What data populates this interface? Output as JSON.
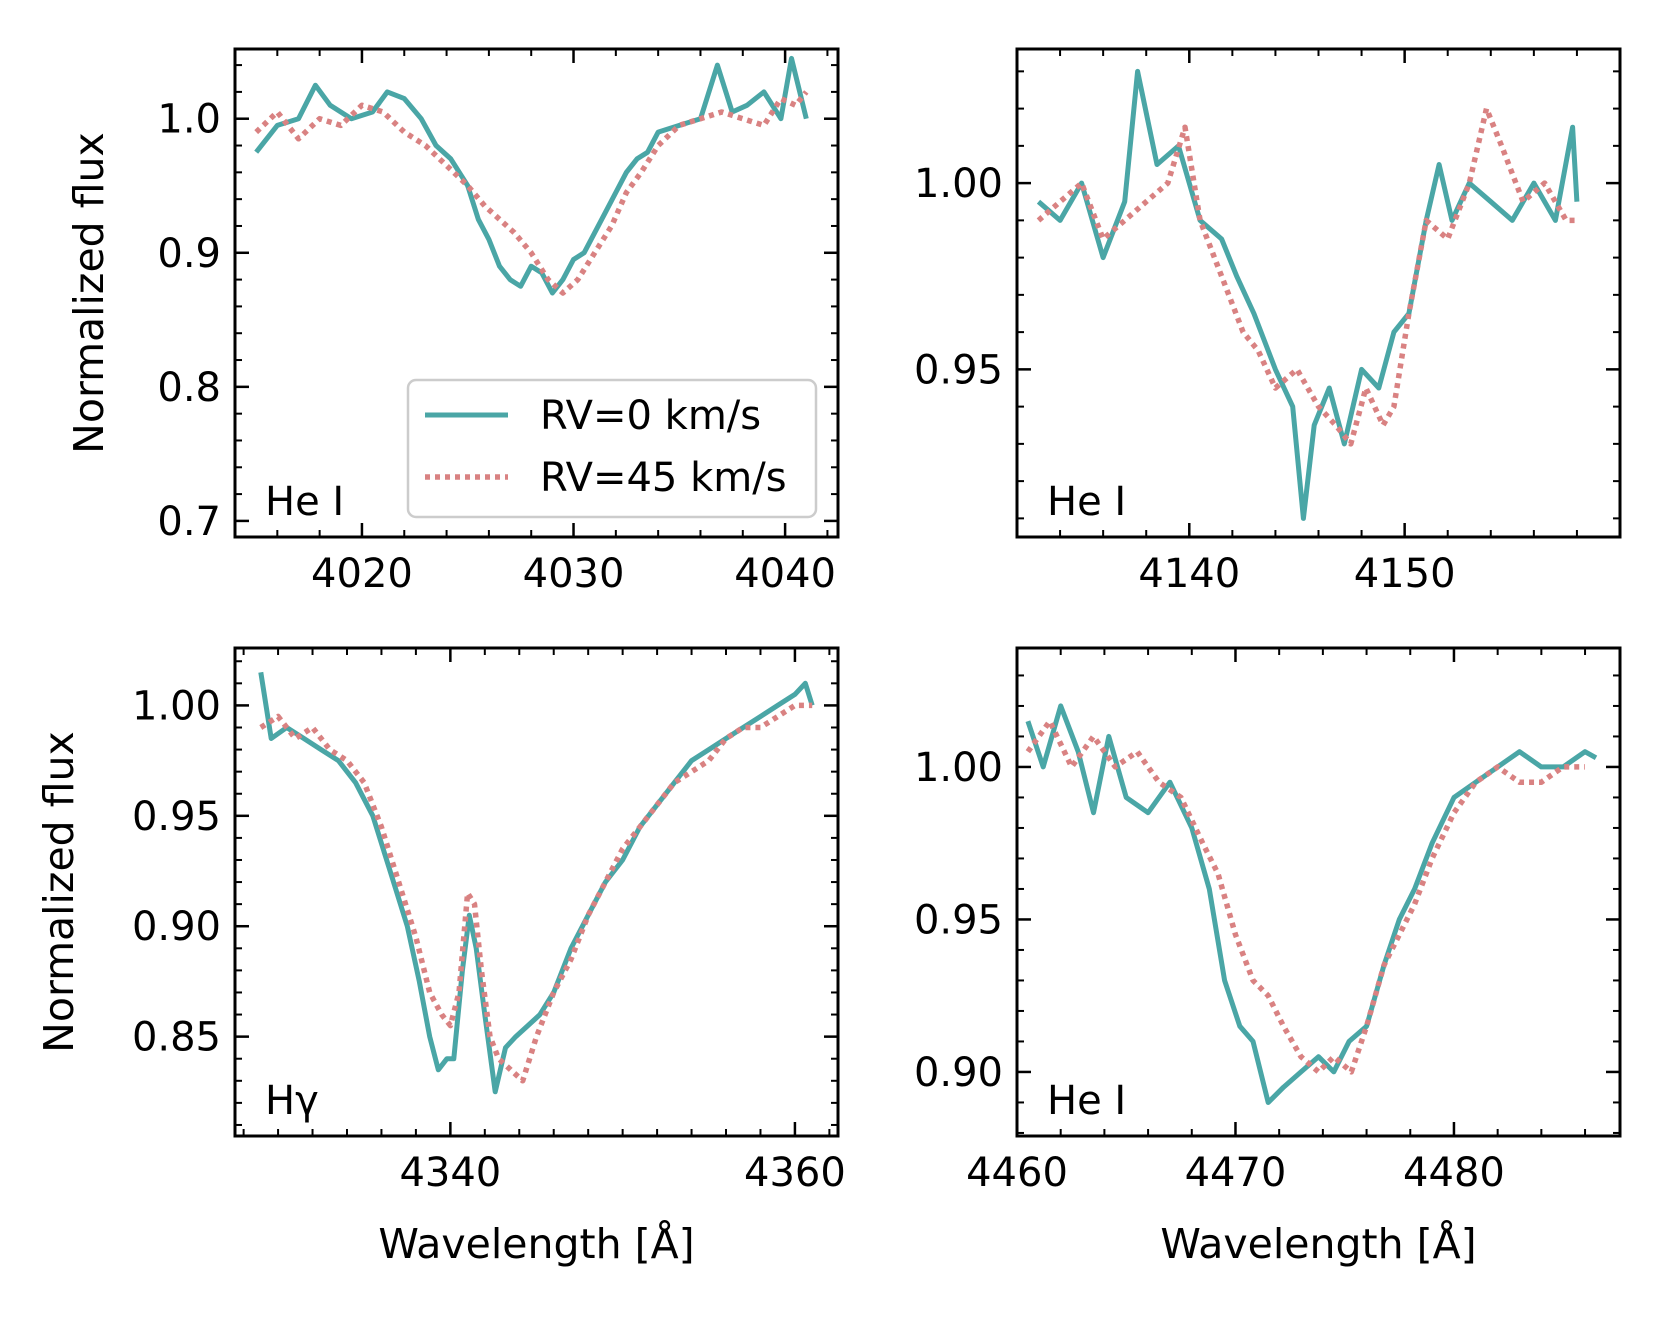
{
  "legend": {
    "entries": [
      {
        "label": "RV=0 km/s",
        "color": "#4aa6a6",
        "style": "solid"
      },
      {
        "label": "RV=45 km/s",
        "color": "#d98282",
        "style": "dotted"
      }
    ]
  },
  "colors": {
    "series_solid": "#4aa6a6",
    "series_dotted": "#d98282",
    "axes": "#000000"
  },
  "chart_data": [
    {
      "type": "line",
      "panel_label": "He I",
      "xlabel": "",
      "ylabel": "Normalized flux",
      "xlim": [
        4014,
        4042.5
      ],
      "ylim": [
        0.688,
        1.052
      ],
      "xticks": [
        4020,
        4030,
        4040
      ],
      "xtick_labels": [
        "4020",
        "4030",
        "4040"
      ],
      "yticks": [
        0.7,
        0.8,
        0.9,
        1.0
      ],
      "ytick_labels": [
        "0.7",
        "0.8",
        "0.9",
        "1.0"
      ],
      "legend": true,
      "series": [
        {
          "name": "RV=0 km/s",
          "x": [
            4015.0,
            4016.0,
            4017.0,
            4017.8,
            4018.5,
            4019.5,
            4020.5,
            4021.2,
            4022.0,
            4022.8,
            4023.5,
            4024.2,
            4025.0,
            4025.5,
            4026.0,
            4026.5,
            4027.0,
            4027.5,
            4028.0,
            4028.5,
            4029.0,
            4029.5,
            4030.0,
            4030.5,
            4031.0,
            4031.5,
            4032.0,
            4032.5,
            4033.0,
            4033.5,
            4034.0,
            4035.0,
            4036.0,
            4036.8,
            4037.5,
            4038.2,
            4039.0,
            4039.8,
            4040.3,
            4041.0
          ],
          "y": [
            0.975,
            0.995,
            1.0,
            1.025,
            1.01,
            1.0,
            1.005,
            1.02,
            1.015,
            1.0,
            0.98,
            0.97,
            0.95,
            0.925,
            0.91,
            0.89,
            0.88,
            0.875,
            0.89,
            0.885,
            0.87,
            0.88,
            0.895,
            0.9,
            0.915,
            0.93,
            0.945,
            0.96,
            0.97,
            0.975,
            0.99,
            0.995,
            1.0,
            1.04,
            1.005,
            1.01,
            1.02,
            1.0,
            1.045,
            1.0
          ]
        },
        {
          "name": "RV=45 km/s",
          "x": [
            4015.0,
            4016.0,
            4017.0,
            4018.0,
            4019.0,
            4020.0,
            4021.0,
            4022.0,
            4023.0,
            4024.0,
            4025.0,
            4025.8,
            4026.5,
            4027.2,
            4028.0,
            4028.8,
            4029.5,
            4030.2,
            4031.0,
            4031.8,
            4032.5,
            4033.2,
            4034.0,
            4035.0,
            4036.0,
            4037.0,
            4038.0,
            4039.0,
            4039.8,
            4040.5,
            4041.0
          ],
          "y": [
            0.99,
            1.005,
            0.985,
            1.0,
            0.995,
            1.01,
            1.005,
            0.99,
            0.98,
            0.965,
            0.95,
            0.935,
            0.925,
            0.915,
            0.9,
            0.88,
            0.87,
            0.88,
            0.9,
            0.92,
            0.945,
            0.96,
            0.98,
            0.995,
            1.0,
            1.005,
            1.0,
            0.995,
            1.015,
            1.01,
            1.02
          ]
        }
      ]
    },
    {
      "type": "line",
      "panel_label": "He I",
      "xlabel": "",
      "ylabel": "",
      "xlim": [
        4132,
        4160
      ],
      "ylim": [
        0.905,
        1.036
      ],
      "xticks": [
        4140,
        4150
      ],
      "xtick_labels": [
        "4140",
        "4150"
      ],
      "yticks": [
        0.95,
        1.0
      ],
      "ytick_labels": [
        "0.95",
        "1.00"
      ],
      "legend": false,
      "series": [
        {
          "name": "RV=0 km/s",
          "x": [
            4133.0,
            4134.0,
            4135.0,
            4136.0,
            4137.0,
            4137.6,
            4138.5,
            4139.5,
            4140.5,
            4141.5,
            4142.2,
            4143.0,
            4144.0,
            4144.8,
            4145.3,
            4145.8,
            4146.5,
            4147.2,
            4148.0,
            4148.8,
            4149.5,
            4150.2,
            4151.0,
            4151.6,
            4152.2,
            4153.0,
            4154.0,
            4155.0,
            4156.0,
            4157.0,
            4157.8,
            4158.0
          ],
          "y": [
            0.995,
            0.99,
            1.0,
            0.98,
            0.995,
            1.03,
            1.005,
            1.01,
            0.99,
            0.985,
            0.975,
            0.965,
            0.95,
            0.94,
            0.91,
            0.935,
            0.945,
            0.93,
            0.95,
            0.945,
            0.96,
            0.965,
            0.99,
            1.005,
            0.99,
            1.0,
            0.995,
            0.99,
            1.0,
            0.99,
            1.015,
            0.995
          ]
        },
        {
          "name": "RV=45 km/s",
          "x": [
            4133.0,
            4134.0,
            4135.0,
            4136.0,
            4137.0,
            4138.0,
            4139.0,
            4139.8,
            4140.5,
            4141.5,
            4142.5,
            4143.2,
            4144.0,
            4145.0,
            4146.0,
            4146.8,
            4147.5,
            4148.2,
            4149.0,
            4149.5,
            4150.2,
            4151.0,
            4152.0,
            4153.0,
            4153.8,
            4154.5,
            4155.5,
            4156.5,
            4157.5,
            4158.0
          ],
          "y": [
            0.99,
            0.995,
            1.0,
            0.985,
            0.99,
            0.995,
            1.0,
            1.015,
            0.99,
            0.975,
            0.96,
            0.955,
            0.945,
            0.95,
            0.94,
            0.935,
            0.93,
            0.945,
            0.935,
            0.94,
            0.965,
            0.99,
            0.985,
            1.0,
            1.02,
            1.01,
            0.995,
            1.0,
            0.99,
            0.99
          ]
        }
      ]
    },
    {
      "type": "line",
      "panel_label": "Hγ",
      "xlabel": "Wavelength [Å]",
      "ylabel": "Normalized flux",
      "xlim": [
        4327.5,
        4362.5
      ],
      "ylim": [
        0.805,
        1.026
      ],
      "xticks": [
        4340,
        4360
      ],
      "xtick_labels": [
        "4340",
        "4360"
      ],
      "yticks": [
        0.85,
        0.9,
        0.95,
        1.0
      ],
      "ytick_labels": [
        "0.85",
        "0.90",
        "0.95",
        "1.00"
      ],
      "legend": false,
      "series": [
        {
          "name": "RV=0 km/s",
          "x": [
            4329.0,
            4329.6,
            4330.5,
            4331.5,
            4332.5,
            4333.5,
            4334.5,
            4335.5,
            4336.5,
            4337.5,
            4338.2,
            4338.8,
            4339.3,
            4339.8,
            4340.2,
            4340.7,
            4341.1,
            4341.5,
            4342.0,
            4342.6,
            4343.2,
            4343.8,
            4344.5,
            4345.2,
            4346.0,
            4347.0,
            4348.0,
            4349.0,
            4350.0,
            4351.0,
            4352.0,
            4353.0,
            4354.0,
            4355.0,
            4356.0,
            4357.0,
            4358.0,
            4359.0,
            4360.0,
            4360.6,
            4361.0
          ],
          "y": [
            1.015,
            0.985,
            0.99,
            0.985,
            0.98,
            0.975,
            0.965,
            0.95,
            0.925,
            0.9,
            0.875,
            0.85,
            0.835,
            0.84,
            0.84,
            0.88,
            0.905,
            0.89,
            0.86,
            0.825,
            0.845,
            0.85,
            0.855,
            0.86,
            0.87,
            0.89,
            0.905,
            0.92,
            0.93,
            0.945,
            0.955,
            0.965,
            0.975,
            0.98,
            0.985,
            0.99,
            0.995,
            1.0,
            1.005,
            1.01,
            1.0
          ]
        },
        {
          "name": "RV=45 km/s",
          "x": [
            4329.0,
            4330.0,
            4331.0,
            4332.0,
            4333.0,
            4334.0,
            4335.0,
            4336.0,
            4337.0,
            4338.0,
            4338.8,
            4339.5,
            4340.0,
            4340.5,
            4341.0,
            4341.4,
            4341.8,
            4342.3,
            4342.8,
            4343.5,
            4344.2,
            4345.0,
            4346.0,
            4347.0,
            4348.0,
            4349.0,
            4350.0,
            4351.0,
            4352.0,
            4353.0,
            4354.0,
            4355.0,
            4356.0,
            4357.0,
            4358.0,
            4359.0,
            4360.0,
            4361.0
          ],
          "y": [
            0.99,
            0.995,
            0.985,
            0.99,
            0.98,
            0.975,
            0.965,
            0.945,
            0.92,
            0.895,
            0.87,
            0.86,
            0.855,
            0.87,
            0.915,
            0.91,
            0.88,
            0.85,
            0.84,
            0.835,
            0.83,
            0.85,
            0.87,
            0.885,
            0.905,
            0.92,
            0.935,
            0.945,
            0.955,
            0.965,
            0.97,
            0.975,
            0.985,
            0.99,
            0.99,
            0.995,
            1.0,
            1.0
          ]
        }
      ]
    },
    {
      "type": "line",
      "panel_label": "He I",
      "xlabel": "Wavelength [Å]",
      "ylabel": "",
      "xlim": [
        4460.0,
        4487.6
      ],
      "ylim": [
        0.879,
        1.039
      ],
      "xticks": [
        4460,
        4470,
        4480
      ],
      "xtick_labels": [
        "4460",
        "4470",
        "4480"
      ],
      "yticks": [
        0.9,
        0.95,
        1.0
      ],
      "ytick_labels": [
        "0.90",
        "0.95",
        "1.00"
      ],
      "legend": false,
      "series": [
        {
          "name": "RV=0 km/s",
          "x": [
            4460.5,
            4461.2,
            4462.0,
            4462.8,
            4463.5,
            4464.2,
            4465.0,
            4466.0,
            4467.0,
            4468.0,
            4468.8,
            4469.5,
            4470.2,
            4470.8,
            4471.5,
            4472.2,
            4473.0,
            4473.8,
            4474.5,
            4475.2,
            4476.0,
            4476.8,
            4477.5,
            4478.2,
            4479.0,
            4480.0,
            4481.0,
            4482.0,
            4483.0,
            4484.0,
            4485.0,
            4486.0,
            4486.5
          ],
          "y": [
            1.015,
            1.0,
            1.02,
            1.005,
            0.985,
            1.01,
            0.99,
            0.985,
            0.995,
            0.98,
            0.96,
            0.93,
            0.915,
            0.91,
            0.89,
            0.895,
            0.9,
            0.905,
            0.9,
            0.91,
            0.915,
            0.935,
            0.95,
            0.96,
            0.975,
            0.99,
            0.995,
            1.0,
            1.005,
            1.0,
            1.0,
            1.005,
            1.003
          ]
        },
        {
          "name": "RV=45 km/s",
          "x": [
            4460.5,
            4461.5,
            4462.5,
            4463.5,
            4464.5,
            4465.5,
            4466.5,
            4467.5,
            4468.5,
            4469.2,
            4470.0,
            4470.8,
            4471.5,
            4472.2,
            4473.0,
            4473.8,
            4474.5,
            4475.3,
            4476.0,
            4476.8,
            4477.5,
            4478.2,
            4479.0,
            4480.0,
            4481.0,
            4482.0,
            4483.0,
            4484.0,
            4485.0,
            4486.0
          ],
          "y": [
            1.005,
            1.015,
            1.0,
            1.01,
            1.0,
            1.005,
            0.995,
            0.99,
            0.975,
            0.965,
            0.945,
            0.93,
            0.925,
            0.915,
            0.905,
            0.9,
            0.905,
            0.9,
            0.915,
            0.935,
            0.945,
            0.955,
            0.97,
            0.985,
            0.995,
            1.0,
            0.995,
            0.995,
            1.0,
            1.0
          ]
        }
      ]
    }
  ]
}
